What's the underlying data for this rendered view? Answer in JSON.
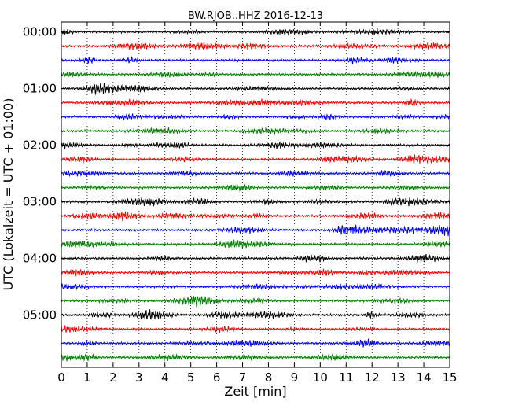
{
  "chart_data": {
    "type": "line",
    "title": "BW.RJOB..HHZ 2016-12-13",
    "xlabel": "Zeit  [min]",
    "ylabel": "UTC (Lokalzeit = UTC + 01:00)",
    "xlim": [
      0,
      15
    ],
    "x_ticks": [
      "0",
      "1",
      "2",
      "3",
      "4",
      "5",
      "6",
      "7",
      "8",
      "9",
      "10",
      "11",
      "12",
      "13",
      "14",
      "15"
    ],
    "y_tick_labels": [
      "00:00",
      "01:00",
      "02:00",
      "03:00",
      "04:00",
      "05:00"
    ],
    "trace_interval_minutes": 15,
    "traces_count_shown": 24,
    "grid": "vertical dotted at each minute",
    "colors": [
      "#000000",
      "#ff0000",
      "#0000ff",
      "#008000"
    ]
  }
}
